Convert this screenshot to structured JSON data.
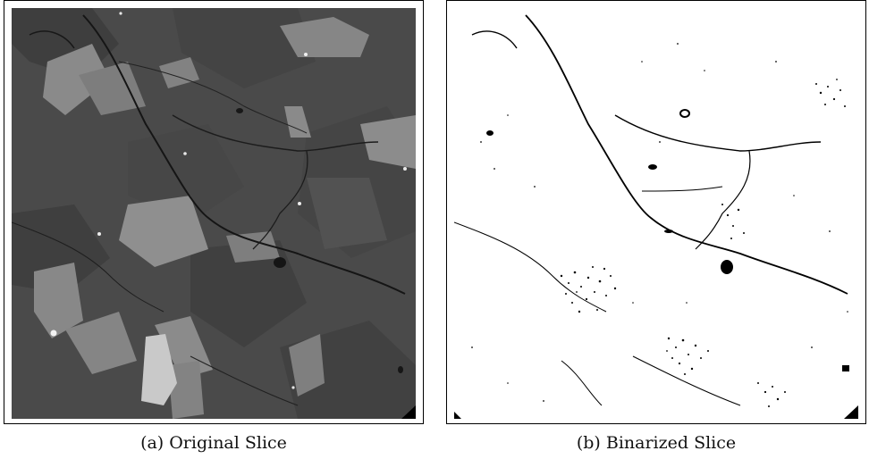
{
  "figure": {
    "panel_a": {
      "label": "(a)",
      "caption": "Original Slice"
    },
    "panel_b": {
      "label": "(b)",
      "caption": "Binarized Slice"
    }
  },
  "colors": {
    "matrix_gray": "#4b4b4b",
    "dark_grain": "#3d3d3d",
    "light_grain": "#8a8a8a",
    "bright_grain": "#c8c8c8",
    "crack": "#141414",
    "binary_background": "#ffffff",
    "binary_foreground": "#000000"
  }
}
